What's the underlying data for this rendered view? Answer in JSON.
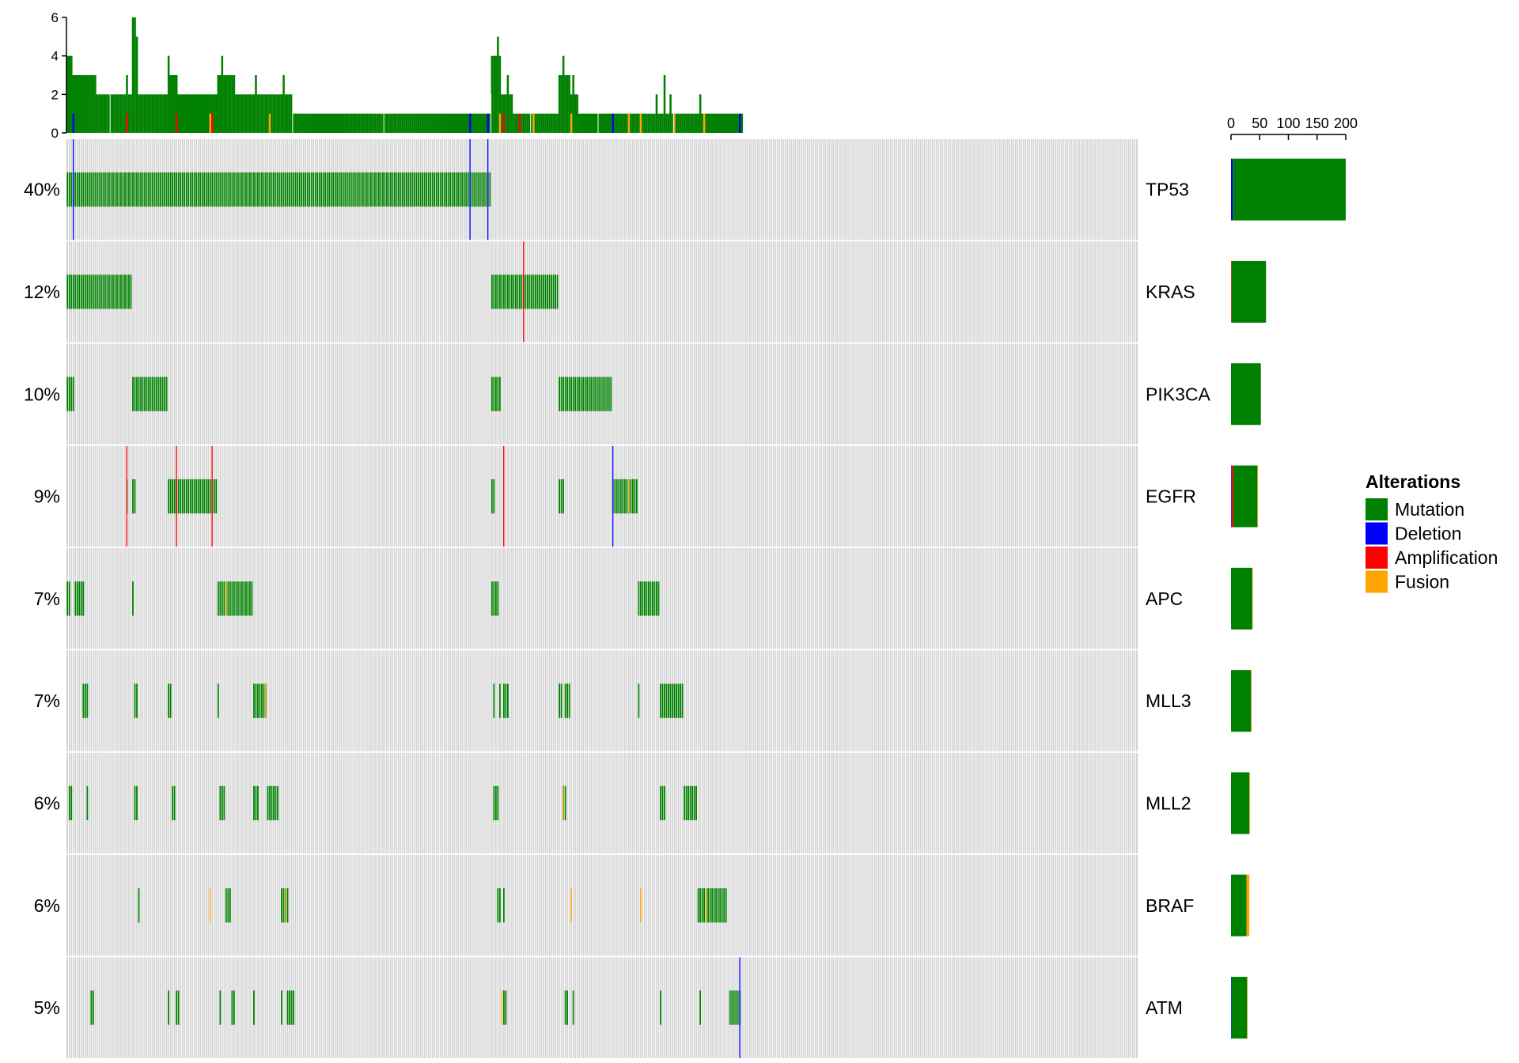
{
  "chart_data": {
    "type": "oncoprint",
    "title": "",
    "xlabel": "",
    "ylabel": "",
    "n_samples": 540,
    "colors": {
      "background": "#d3d3d3",
      "Mutation": "#008000",
      "Deletion": "#0000ff",
      "Amplification": "#ff0000",
      "Fusion": "#ffa500"
    },
    "legend": {
      "title": "Alterations",
      "position": "right",
      "entries": [
        "Mutation",
        "Deletion",
        "Amplification",
        "Fusion"
      ]
    },
    "top_barplot": {
      "ylim": [
        0,
        6
      ],
      "ticks": [
        "0",
        "2",
        "4",
        "6"
      ],
      "profile": [
        {
          "from": 0,
          "to": 3,
          "value": 4
        },
        {
          "from": 3,
          "to": 15,
          "value": 3
        },
        {
          "from": 15,
          "to": 33,
          "value": 2
        },
        {
          "from": 33,
          "to": 36,
          "value": 6
        },
        {
          "from": 36,
          "to": 52,
          "value": 2
        },
        {
          "from": 52,
          "to": 56,
          "value": 3
        },
        {
          "from": 56,
          "to": 76,
          "value": 2
        },
        {
          "from": 76,
          "to": 85,
          "value": 3
        },
        {
          "from": 85,
          "to": 114,
          "value": 2
        },
        {
          "from": 114,
          "to": 214,
          "value": 1
        },
        {
          "from": 214,
          "to": 219,
          "value": 4
        },
        {
          "from": 219,
          "to": 225,
          "value": 2
        },
        {
          "from": 225,
          "to": 248,
          "value": 1
        },
        {
          "from": 248,
          "to": 254,
          "value": 3
        },
        {
          "from": 254,
          "to": 258,
          "value": 2
        },
        {
          "from": 258,
          "to": 341,
          "value": 1
        }
      ],
      "peaks": [
        [
          30,
          3
        ],
        [
          34,
          6
        ],
        [
          35,
          5
        ],
        [
          51,
          4
        ],
        [
          78,
          4
        ],
        [
          95,
          3
        ],
        [
          109,
          3
        ],
        [
          217,
          5
        ],
        [
          222,
          3
        ],
        [
          250,
          4
        ],
        [
          255,
          3
        ],
        [
          297,
          2
        ],
        [
          301,
          3
        ],
        [
          304,
          2
        ],
        [
          319,
          2
        ]
      ],
      "colored": [
        {
          "sample": 3,
          "type": "Deletion"
        },
        {
          "sample": 30,
          "type": "Amplification"
        },
        {
          "sample": 55,
          "type": "Amplification"
        },
        {
          "sample": 72,
          "type": "Fusion"
        },
        {
          "sample": 73,
          "type": "Amplification"
        },
        {
          "sample": 102,
          "type": "Fusion"
        },
        {
          "sample": 203,
          "type": "Deletion"
        },
        {
          "sample": 212,
          "type": "Deletion"
        },
        {
          "sample": 218,
          "type": "Fusion"
        },
        {
          "sample": 220,
          "type": "Amplification"
        },
        {
          "sample": 228,
          "type": "Amplification"
        },
        {
          "sample": 235,
          "type": "Fusion"
        },
        {
          "sample": 254,
          "type": "Fusion"
        },
        {
          "sample": 275,
          "type": "Deletion"
        },
        {
          "sample": 283,
          "type": "Fusion"
        },
        {
          "sample": 289,
          "type": "Fusion"
        },
        {
          "sample": 306,
          "type": "Fusion"
        },
        {
          "sample": 321,
          "type": "Fusion"
        },
        {
          "sample": 339,
          "type": "Deletion"
        }
      ]
    },
    "right_barplot": {
      "xlim": [
        0,
        200
      ],
      "ticks": [
        "0",
        "50",
        "100",
        "150",
        "200"
      ]
    },
    "genes": [
      {
        "name": "TP53",
        "percent": "40%",
        "count": 200,
        "mutation_runs": [
          [
            0,
            214
          ]
        ],
        "events": [
          {
            "sample": 3,
            "type": "Deletion"
          },
          {
            "sample": 203,
            "type": "Deletion"
          },
          {
            "sample": 212,
            "type": "Deletion"
          }
        ],
        "bar": {
          "Mutation": 197,
          "Deletion": 3,
          "Amplification": 0,
          "Fusion": 0
        }
      },
      {
        "name": "KRAS",
        "percent": "12%",
        "count": 61,
        "mutation_runs": [
          [
            0,
            33
          ],
          [
            214,
            248
          ]
        ],
        "events": [
          {
            "sample": 230,
            "type": "Amplification"
          }
        ],
        "bar": {
          "Mutation": 60,
          "Deletion": 0,
          "Amplification": 1,
          "Fusion": 0
        }
      },
      {
        "name": "PIK3CA",
        "percent": "10%",
        "count": 52,
        "mutation_runs": [
          [
            0,
            4
          ],
          [
            33,
            51
          ],
          [
            214,
            219
          ],
          [
            248,
            275
          ]
        ],
        "events": [],
        "bar": {
          "Mutation": 52,
          "Deletion": 0,
          "Amplification": 0,
          "Fusion": 0
        }
      },
      {
        "name": "EGFR",
        "percent": "9%",
        "count": 47,
        "mutation_runs": [
          [
            30,
            31
          ],
          [
            33,
            35
          ],
          [
            51,
            76
          ],
          [
            214,
            216
          ],
          [
            248,
            251
          ],
          [
            275,
            288
          ]
        ],
        "events": [
          {
            "sample": 30,
            "type": "Amplification"
          },
          {
            "sample": 55,
            "type": "Amplification"
          },
          {
            "sample": 73,
            "type": "Amplification"
          },
          {
            "sample": 220,
            "type": "Amplification"
          },
          {
            "sample": 275,
            "type": "Deletion"
          },
          {
            "sample": 283,
            "type": "Fusion"
          }
        ],
        "bar": {
          "Mutation": 42,
          "Deletion": 1,
          "Amplification": 3,
          "Fusion": 1
        }
      },
      {
        "name": "APC",
        "percent": "7%",
        "count": 38,
        "mutation_runs": [
          [
            0,
            2
          ],
          [
            4,
            9
          ],
          [
            33,
            34
          ],
          [
            76,
            94
          ],
          [
            214,
            218
          ],
          [
            288,
            299
          ]
        ],
        "events": [
          {
            "sample": 80,
            "type": "Fusion"
          }
        ],
        "bar": {
          "Mutation": 37,
          "Deletion": 0,
          "Amplification": 0,
          "Fusion": 1
        }
      },
      {
        "name": "MLL3",
        "percent": "7%",
        "count": 36,
        "mutation_runs": [
          [
            8,
            11
          ],
          [
            34,
            36
          ],
          [
            51,
            53
          ],
          [
            76,
            77
          ],
          [
            94,
            101
          ],
          [
            215,
            216
          ],
          [
            218,
            219
          ],
          [
            220,
            223
          ],
          [
            248,
            250
          ],
          [
            251,
            254
          ],
          [
            288,
            289
          ],
          [
            299,
            311
          ]
        ],
        "events": [
          {
            "sample": 100,
            "type": "Fusion"
          }
        ],
        "bar": {
          "Mutation": 35,
          "Deletion": 0,
          "Amplification": 0,
          "Fusion": 1
        }
      },
      {
        "name": "MLL2",
        "percent": "6%",
        "count": 33,
        "mutation_runs": [
          [
            1,
            3
          ],
          [
            10,
            11
          ],
          [
            34,
            36
          ],
          [
            53,
            55
          ],
          [
            77,
            80
          ],
          [
            94,
            97
          ],
          [
            101,
            107
          ],
          [
            215,
            218
          ],
          [
            250,
            252
          ],
          [
            299,
            302
          ],
          [
            311,
            318
          ]
        ],
        "events": [
          {
            "sample": 250,
            "type": "Fusion"
          }
        ],
        "bar": {
          "Mutation": 32,
          "Deletion": 0,
          "Amplification": 0,
          "Fusion": 1
        }
      },
      {
        "name": "BRAF",
        "percent": "6%",
        "count": 32,
        "mutation_runs": [
          [
            36,
            37
          ],
          [
            80,
            83
          ],
          [
            108,
            112
          ],
          [
            217,
            219
          ],
          [
            220,
            221
          ],
          [
            318,
            333
          ]
        ],
        "events": [
          {
            "sample": 72,
            "type": "Fusion"
          },
          {
            "sample": 110,
            "type": "Fusion"
          },
          {
            "sample": 254,
            "type": "Fusion"
          },
          {
            "sample": 289,
            "type": "Fusion"
          },
          {
            "sample": 322,
            "type": "Fusion"
          }
        ],
        "bar": {
          "Mutation": 27,
          "Deletion": 0,
          "Amplification": 0,
          "Fusion": 5
        }
      },
      {
        "name": "ATM",
        "percent": "5%",
        "count": 29,
        "mutation_runs": [
          [
            12,
            14
          ],
          [
            51,
            52
          ],
          [
            55,
            57
          ],
          [
            77,
            78
          ],
          [
            83,
            85
          ],
          [
            94,
            95
          ],
          [
            108,
            109
          ],
          [
            111,
            115
          ],
          [
            220,
            222
          ],
          [
            251,
            253
          ],
          [
            255,
            256
          ],
          [
            299,
            300
          ],
          [
            319,
            320
          ],
          [
            334,
            340
          ]
        ],
        "events": [
          {
            "sample": 219,
            "type": "Fusion"
          },
          {
            "sample": 339,
            "type": "Deletion"
          }
        ],
        "bar": {
          "Mutation": 27,
          "Deletion": 1,
          "Amplification": 0,
          "Fusion": 1
        }
      }
    ]
  }
}
